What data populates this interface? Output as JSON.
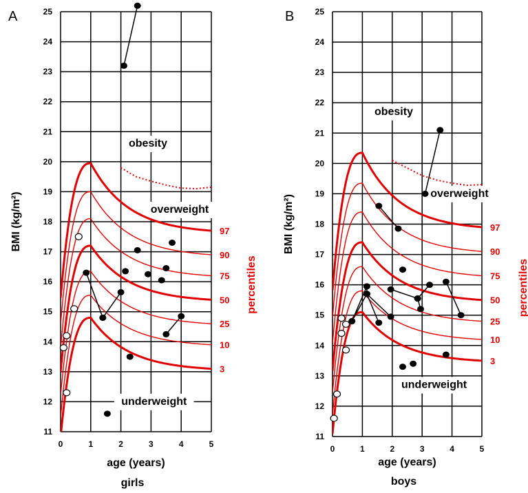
{
  "chart_data": [
    {
      "panel": "A",
      "type": "line",
      "group": "girls",
      "xlabel": "age (years)",
      "ylabel": "BMI (kg/m²)",
      "xlim": [
        0,
        5
      ],
      "ylim": [
        11,
        25
      ],
      "xticks": [
        "0",
        "1",
        "2",
        "3",
        "4",
        "5"
      ],
      "yticks": [
        "11",
        "12",
        "13",
        "14",
        "15",
        "16",
        "17",
        "18",
        "19",
        "20",
        "21",
        "22",
        "23",
        "24",
        "25"
      ],
      "percentile_title": "percentiles",
      "percentile_labels": [
        {
          "text": "97",
          "y": 17.7
        },
        {
          "text": "90",
          "y": 16.9
        },
        {
          "text": "75",
          "y": 16.2
        },
        {
          "text": "50",
          "y": 15.4
        },
        {
          "text": "25",
          "y": 14.6
        },
        {
          "text": "10",
          "y": 13.9
        },
        {
          "text": "3",
          "y": 13.1
        }
      ],
      "zones": [
        {
          "text": "obesity",
          "x": 2.9,
          "y": 20.5
        },
        {
          "text": "overweight",
          "x": 3.95,
          "y": 18.3
        },
        {
          "text": "underweight",
          "x": 3.1,
          "y": 11.9
        }
      ],
      "curves": [
        {
          "p": "97",
          "peak": 19.95,
          "end": 17.7,
          "bold": true
        },
        {
          "p": "90",
          "peak": 19.0,
          "end": 16.9,
          "bold": false
        },
        {
          "p": "75",
          "peak": 18.1,
          "end": 16.2,
          "bold": false
        },
        {
          "p": "50",
          "peak": 17.2,
          "end": 15.4,
          "bold": true
        },
        {
          "p": "25",
          "peak": 16.35,
          "end": 14.6,
          "bold": false
        },
        {
          "p": "10",
          "peak": 15.55,
          "end": 13.9,
          "bold": false
        },
        {
          "p": "3",
          "peak": 14.8,
          "end": 13.1,
          "bold": true
        }
      ],
      "obesity_threshold": [
        [
          2.0,
          19.8
        ],
        [
          2.5,
          19.5
        ],
        [
          3.0,
          19.35
        ],
        [
          3.5,
          19.22
        ],
        [
          4.0,
          19.12
        ],
        [
          4.5,
          19.1
        ],
        [
          5.0,
          19.15
        ]
      ],
      "open_points": [
        [
          0.2,
          12.3
        ],
        [
          0.1,
          13.8
        ],
        [
          0.2,
          14.2
        ],
        [
          0.45,
          15.1
        ],
        [
          0.6,
          17.5
        ]
      ],
      "filled_points": [
        [
          1.55,
          11.6
        ],
        [
          2.3,
          13.5
        ],
        [
          2.55,
          17.05
        ],
        [
          3.7,
          17.3
        ],
        [
          2.15,
          16.35
        ],
        [
          2.9,
          16.25
        ],
        [
          3.35,
          16.05
        ],
        [
          3.5,
          16.45
        ]
      ],
      "segments": [
        {
          "from": [
            2.1,
            23.2
          ],
          "to": [
            2.55,
            25.2
          ]
        },
        {
          "from": [
            0.85,
            16.3
          ],
          "to": [
            1.4,
            14.8
          ]
        },
        {
          "from": [
            1.4,
            14.8
          ],
          "to": [
            2.0,
            15.65
          ]
        },
        {
          "from": [
            3.5,
            14.25
          ],
          "to": [
            4.0,
            14.85
          ]
        }
      ],
      "group_label": "girls"
    },
    {
      "panel": "B",
      "type": "line",
      "group": "boys",
      "xlabel": "age (years)",
      "ylabel": "BMI (kg/m²)",
      "xlim": [
        0,
        5
      ],
      "ylim": [
        11,
        25
      ],
      "xticks": [
        "0",
        "1",
        "2",
        "3",
        "4",
        "5"
      ],
      "yticks": [
        "11",
        "12",
        "13",
        "14",
        "15",
        "16",
        "17",
        "18",
        "19",
        "20",
        "21",
        "22",
        "23",
        "24",
        "25"
      ],
      "percentile_title": "percentiles",
      "percentile_labels": [
        {
          "text": "97",
          "y": 17.9
        },
        {
          "text": "90",
          "y": 17.1
        },
        {
          "text": "75",
          "y": 16.3
        },
        {
          "text": "50",
          "y": 15.5
        },
        {
          "text": "25",
          "y": 14.8
        },
        {
          "text": "10",
          "y": 14.2
        },
        {
          "text": "3",
          "y": 13.5
        }
      ],
      "zones": [
        {
          "text": "obesity",
          "x": 2.05,
          "y": 21.6
        },
        {
          "text": "overweight",
          "x": 4.25,
          "y": 18.9
        },
        {
          "text": "underweight",
          "x": 3.4,
          "y": 12.6
        }
      ],
      "curves": [
        {
          "p": "97",
          "peak": 20.35,
          "end": 17.9,
          "bold": true
        },
        {
          "p": "90",
          "peak": 19.35,
          "end": 17.1,
          "bold": false
        },
        {
          "p": "75",
          "peak": 18.4,
          "end": 16.3,
          "bold": false
        },
        {
          "p": "50",
          "peak": 17.4,
          "end": 15.5,
          "bold": true
        },
        {
          "p": "25",
          "peak": 16.6,
          "end": 14.8,
          "bold": false
        },
        {
          "p": "10",
          "peak": 15.8,
          "end": 14.2,
          "bold": false
        },
        {
          "p": "3",
          "peak": 15.1,
          "end": 13.5,
          "bold": true
        }
      ],
      "obesity_threshold": [
        [
          2.0,
          20.1
        ],
        [
          2.5,
          19.85
        ],
        [
          3.0,
          19.6
        ],
        [
          3.5,
          19.45
        ],
        [
          4.0,
          19.35
        ],
        [
          4.5,
          19.28
        ],
        [
          5.0,
          19.3
        ]
      ],
      "open_points": [
        [
          0.05,
          11.6
        ],
        [
          0.15,
          12.4
        ],
        [
          0.3,
          14.9
        ],
        [
          0.3,
          14.4
        ],
        [
          0.45,
          14.7
        ],
        [
          0.45,
          13.85
        ]
      ],
      "filled_points": [
        [
          2.35,
          16.5
        ],
        [
          2.35,
          13.3
        ],
        [
          2.7,
          13.4
        ],
        [
          3.8,
          13.7
        ]
      ],
      "segments": [
        {
          "from": [
            3.6,
            21.1
          ],
          "to": [
            3.1,
            19.0
          ]
        },
        {
          "from": [
            1.55,
            18.6
          ],
          "to": [
            2.2,
            17.85
          ]
        },
        {
          "from": [
            0.65,
            14.8
          ],
          "to": [
            1.15,
            15.95
          ]
        },
        {
          "from": [
            1.15,
            15.95
          ],
          "to": [
            1.15,
            15.7
          ]
        },
        {
          "from": [
            0.65,
            14.8
          ],
          "to": [
            1.15,
            15.7
          ]
        },
        {
          "from": [
            1.15,
            15.7
          ],
          "to": [
            1.55,
            14.75
          ]
        },
        {
          "from": [
            1.15,
            15.7
          ],
          "to": [
            1.95,
            14.95
          ]
        },
        {
          "from": [
            1.95,
            15.85
          ],
          "to": [
            2.85,
            15.55
          ]
        },
        {
          "from": [
            2.85,
            15.55
          ],
          "to": [
            2.95,
            15.2
          ]
        },
        {
          "from": [
            2.85,
            15.55
          ],
          "to": [
            3.25,
            16.0
          ]
        },
        {
          "from": [
            3.8,
            16.1
          ],
          "to": [
            4.3,
            15.0
          ]
        }
      ],
      "group_label": "boys"
    }
  ]
}
